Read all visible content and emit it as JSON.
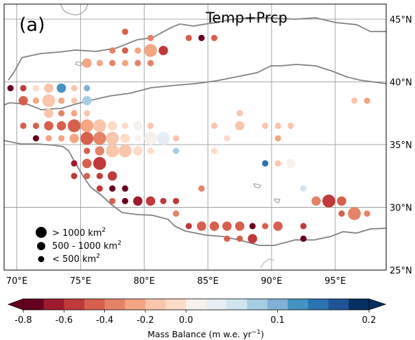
{
  "panel_label": "(a)",
  "experiment": "Temp+Prcp",
  "map": {
    "lon_range": [
      69,
      99
    ],
    "lat_range": [
      25,
      46.2
    ],
    "lon_ticks": [
      {
        "value": 70,
        "label": "70°E"
      },
      {
        "value": 75,
        "label": "75°E"
      },
      {
        "value": 80,
        "label": "80°E"
      },
      {
        "value": 85,
        "label": "85°E"
      },
      {
        "value": 90,
        "label": "90°E"
      },
      {
        "value": 95,
        "label": "95°E"
      }
    ],
    "lat_ticks": [
      {
        "value": 25,
        "label": "25°N"
      },
      {
        "value": 30,
        "label": "30°N"
      },
      {
        "value": 35,
        "label": "35°N"
      },
      {
        "value": 40,
        "label": "40°N"
      },
      {
        "value": 45,
        "label": "45°N"
      }
    ],
    "gridlines": true
  },
  "size_legend": [
    {
      "size": "large",
      "label": "> 1000 km",
      "exp": "2"
    },
    {
      "size": "medium",
      "label": "500 - 1000 km",
      "exp": "2"
    },
    {
      "size": "small",
      "label": "< 500 km",
      "exp": "2"
    }
  ],
  "colorbar": {
    "title_main": "Mass Balance (m w.e. yr",
    "title_exp": "−1",
    "title_end": ")",
    "extend": "both",
    "colors": [
      "#67001f",
      "#9e1a2e",
      "#c0393b",
      "#d6604d",
      "#e58368",
      "#f4a582",
      "#f9c6ac",
      "#fddbc7",
      "#f7f1ee",
      "#e4eef4",
      "#d1e5f0",
      "#a6cee3",
      "#7fb2d5",
      "#4393c3",
      "#2d73b0",
      "#1e5496",
      "#053061"
    ],
    "ticks": [
      {
        "value": -0.8,
        "label": "-0.8"
      },
      {
        "value": -0.6,
        "label": "-0.6"
      },
      {
        "value": -0.4,
        "label": "-0.4"
      },
      {
        "value": -0.2,
        "label": "-0.2"
      },
      {
        "value": 0.0,
        "label": "0.0"
      },
      {
        "value": 0.1,
        "label": "0.1"
      },
      {
        "value": 0.2,
        "label": "0.2"
      }
    ]
  },
  "chart_data": {
    "type": "scatter",
    "title": "Temp+Prcp",
    "xlabel": "",
    "ylabel": "",
    "size_classes": {
      "s": "< 500 km2",
      "m": "500 - 1000 km2",
      "l": "> 1000 km2"
    },
    "points": [
      {
        "lon": 78.5,
        "lat": 44.0,
        "mb": -0.45,
        "size": "s"
      },
      {
        "lon": 80.5,
        "lat": 43.5,
        "mb": -0.35,
        "size": "s"
      },
      {
        "lon": 83.5,
        "lat": 43.5,
        "mb": -0.45,
        "size": "s"
      },
      {
        "lon": 84.5,
        "lat": 43.5,
        "mb": -0.75,
        "size": "s"
      },
      {
        "lon": 85.5,
        "lat": 43.5,
        "mb": -0.5,
        "size": "s"
      },
      {
        "lon": 77.5,
        "lat": 42.5,
        "mb": -0.4,
        "size": "s"
      },
      {
        "lon": 78.5,
        "lat": 42.5,
        "mb": -0.45,
        "size": "s"
      },
      {
        "lon": 79.5,
        "lat": 42.5,
        "mb": -0.3,
        "size": "s"
      },
      {
        "lon": 80.5,
        "lat": 42.5,
        "mb": -0.25,
        "size": "l"
      },
      {
        "lon": 81.5,
        "lat": 42.5,
        "mb": -0.6,
        "size": "m"
      },
      {
        "lon": 75.5,
        "lat": 41.5,
        "mb": -0.3,
        "size": "m"
      },
      {
        "lon": 76.5,
        "lat": 41.5,
        "mb": -0.3,
        "size": "s"
      },
      {
        "lon": 77.5,
        "lat": 41.5,
        "mb": -0.4,
        "size": "s"
      },
      {
        "lon": 78.5,
        "lat": 41.5,
        "mb": -0.25,
        "size": "s"
      },
      {
        "lon": 79.5,
        "lat": 41.5,
        "mb": -0.35,
        "size": "s"
      },
      {
        "lon": 80.5,
        "lat": 41.5,
        "mb": -0.35,
        "size": "s"
      },
      {
        "lon": 69.5,
        "lat": 39.5,
        "mb": -0.85,
        "size": "s"
      },
      {
        "lon": 70.5,
        "lat": 39.5,
        "mb": -0.55,
        "size": "s"
      },
      {
        "lon": 71.5,
        "lat": 39.5,
        "mb": -0.1,
        "size": "s"
      },
      {
        "lon": 72.5,
        "lat": 39.5,
        "mb": -0.2,
        "size": "m"
      },
      {
        "lon": 73.5,
        "lat": 39.5,
        "mb": 0.12,
        "size": "m"
      },
      {
        "lon": 74.5,
        "lat": 39.5,
        "mb": -0.15,
        "size": "s"
      },
      {
        "lon": 75.5,
        "lat": 39.5,
        "mb": 0.1,
        "size": "s"
      },
      {
        "lon": 70.5,
        "lat": 38.5,
        "mb": -0.45,
        "size": "m"
      },
      {
        "lon": 71.5,
        "lat": 38.5,
        "mb": -0.25,
        "size": "s"
      },
      {
        "lon": 72.5,
        "lat": 38.5,
        "mb": -0.2,
        "size": "l"
      },
      {
        "lon": 73.5,
        "lat": 38.5,
        "mb": -0.3,
        "size": "s"
      },
      {
        "lon": 74.5,
        "lat": 38.5,
        "mb": -0.2,
        "size": "s"
      },
      {
        "lon": 75.5,
        "lat": 38.5,
        "mb": 0.08,
        "size": "m"
      },
      {
        "lon": 72.5,
        "lat": 37.5,
        "mb": -0.2,
        "size": "m"
      },
      {
        "lon": 73.5,
        "lat": 37.5,
        "mb": -0.4,
        "size": "s"
      },
      {
        "lon": 74.5,
        "lat": 37.5,
        "mb": -0.3,
        "size": "s"
      },
      {
        "lon": 75.5,
        "lat": 37.5,
        "mb": -0.2,
        "size": "s"
      },
      {
        "lon": 87.5,
        "lat": 37.5,
        "mb": -0.2,
        "size": "s"
      },
      {
        "lon": 96.5,
        "lat": 38.5,
        "mb": -0.2,
        "size": "s"
      },
      {
        "lon": 97.5,
        "lat": 38.5,
        "mb": -0.25,
        "size": "s"
      },
      {
        "lon": 70.5,
        "lat": 36.5,
        "mb": -0.45,
        "size": "s"
      },
      {
        "lon": 71.5,
        "lat": 36.5,
        "mb": -0.5,
        "size": "s"
      },
      {
        "lon": 72.5,
        "lat": 36.5,
        "mb": -0.45,
        "size": "m"
      },
      {
        "lon": 73.5,
        "lat": 36.5,
        "mb": -0.45,
        "size": "m"
      },
      {
        "lon": 74.5,
        "lat": 36.5,
        "mb": -0.45,
        "size": "l"
      },
      {
        "lon": 75.5,
        "lat": 36.5,
        "mb": -0.3,
        "size": "l"
      },
      {
        "lon": 76.5,
        "lat": 36.5,
        "mb": -0.15,
        "size": "l"
      },
      {
        "lon": 77.5,
        "lat": 36.5,
        "mb": -0.1,
        "size": "m"
      },
      {
        "lon": 78.5,
        "lat": 36.5,
        "mb": -0.05,
        "size": "s"
      },
      {
        "lon": 79.5,
        "lat": 36.5,
        "mb": 0.02,
        "size": "m"
      },
      {
        "lon": 80.5,
        "lat": 36.5,
        "mb": -0.15,
        "size": "s"
      },
      {
        "lon": 85.5,
        "lat": 36.5,
        "mb": -0.2,
        "size": "s"
      },
      {
        "lon": 87.5,
        "lat": 36.5,
        "mb": -0.2,
        "size": "m"
      },
      {
        "lon": 89.5,
        "lat": 36.5,
        "mb": -0.15,
        "size": "s"
      },
      {
        "lon": 90.5,
        "lat": 36.5,
        "mb": -0.2,
        "size": "s"
      },
      {
        "lon": 91.5,
        "lat": 36.5,
        "mb": -0.2,
        "size": "s"
      },
      {
        "lon": 71.5,
        "lat": 35.5,
        "mb": -0.85,
        "size": "s"
      },
      {
        "lon": 72.5,
        "lat": 35.5,
        "mb": -0.3,
        "size": "s"
      },
      {
        "lon": 73.5,
        "lat": 35.5,
        "mb": -0.3,
        "size": "s"
      },
      {
        "lon": 74.5,
        "lat": 35.5,
        "mb": -0.3,
        "size": "m"
      },
      {
        "lon": 75.5,
        "lat": 35.5,
        "mb": -0.45,
        "size": "l"
      },
      {
        "lon": 76.5,
        "lat": 35.5,
        "mb": -0.35,
        "size": "l"
      },
      {
        "lon": 77.5,
        "lat": 35.5,
        "mb": -0.15,
        "size": "l"
      },
      {
        "lon": 78.5,
        "lat": 35.5,
        "mb": -0.05,
        "size": "m"
      },
      {
        "lon": 79.5,
        "lat": 35.5,
        "mb": 0.02,
        "size": "s"
      },
      {
        "lon": 80.5,
        "lat": 35.5,
        "mb": 0.02,
        "size": "l"
      },
      {
        "lon": 81.5,
        "lat": 35.5,
        "mb": 0.03,
        "size": "l"
      },
      {
        "lon": 82.5,
        "lat": 35.5,
        "mb": -0.2,
        "size": "s"
      },
      {
        "lon": 86.5,
        "lat": 35.5,
        "mb": -0.1,
        "size": "s"
      },
      {
        "lon": 90.5,
        "lat": 35.5,
        "mb": -0.25,
        "size": "s"
      },
      {
        "lon": 75.5,
        "lat": 34.5,
        "mb": -0.5,
        "size": "s"
      },
      {
        "lon": 76.5,
        "lat": 34.5,
        "mb": -0.35,
        "size": "m"
      },
      {
        "lon": 77.5,
        "lat": 34.5,
        "mb": -0.2,
        "size": "l"
      },
      {
        "lon": 78.5,
        "lat": 34.5,
        "mb": -0.15,
        "size": "l"
      },
      {
        "lon": 79.5,
        "lat": 34.5,
        "mb": -0.1,
        "size": "m"
      },
      {
        "lon": 80.5,
        "lat": 34.5,
        "mb": -0.05,
        "size": "s"
      },
      {
        "lon": 82.5,
        "lat": 34.5,
        "mb": 0.07,
        "size": "s"
      },
      {
        "lon": 85.5,
        "lat": 34.5,
        "mb": -0.05,
        "size": "s"
      },
      {
        "lon": 74.5,
        "lat": 33.5,
        "mb": -0.65,
        "size": "s"
      },
      {
        "lon": 75.5,
        "lat": 33.5,
        "mb": -0.5,
        "size": "m"
      },
      {
        "lon": 76.5,
        "lat": 33.5,
        "mb": -0.55,
        "size": "l"
      },
      {
        "lon": 89.5,
        "lat": 33.5,
        "mb": 0.14,
        "size": "s"
      },
      {
        "lon": 90.5,
        "lat": 33.5,
        "mb": -0.15,
        "size": "s"
      },
      {
        "lon": 91.5,
        "lat": 33.5,
        "mb": 0.02,
        "size": "m"
      },
      {
        "lon": 74.5,
        "lat": 32.5,
        "mb": -0.6,
        "size": "s"
      },
      {
        "lon": 75.5,
        "lat": 32.5,
        "mb": -0.5,
        "size": "s"
      },
      {
        "lon": 76.5,
        "lat": 32.5,
        "mb": -0.55,
        "size": "s"
      },
      {
        "lon": 77.5,
        "lat": 32.5,
        "mb": -0.55,
        "size": "m"
      },
      {
        "lon": 76.5,
        "lat": 31.5,
        "mb": -0.6,
        "size": "s"
      },
      {
        "lon": 77.5,
        "lat": 31.5,
        "mb": -0.85,
        "size": "s"
      },
      {
        "lon": 78.5,
        "lat": 31.5,
        "mb": -0.85,
        "size": "s"
      },
      {
        "lon": 77.5,
        "lat": 30.5,
        "mb": -0.5,
        "size": "s"
      },
      {
        "lon": 78.5,
        "lat": 30.5,
        "mb": -0.85,
        "size": "s"
      },
      {
        "lon": 79.5,
        "lat": 30.5,
        "mb": -0.65,
        "size": "m"
      },
      {
        "lon": 80.5,
        "lat": 30.5,
        "mb": -0.55,
        "size": "m"
      },
      {
        "lon": 81.5,
        "lat": 30.5,
        "mb": -0.6,
        "size": "s"
      },
      {
        "lon": 82.5,
        "lat": 30.5,
        "mb": -0.6,
        "size": "s"
      },
      {
        "lon": 84.5,
        "lat": 31.5,
        "mb": -0.35,
        "size": "s"
      },
      {
        "lon": 92.5,
        "lat": 31.5,
        "mb": 0.06,
        "size": "s"
      },
      {
        "lon": 93.5,
        "lat": 30.5,
        "mb": -0.35,
        "size": "m"
      },
      {
        "lon": 94.5,
        "lat": 30.5,
        "mb": -0.55,
        "size": "l"
      },
      {
        "lon": 95.5,
        "lat": 30.5,
        "mb": -0.45,
        "size": "m"
      },
      {
        "lon": 95.5,
        "lat": 29.5,
        "mb": -0.45,
        "size": "s"
      },
      {
        "lon": 96.5,
        "lat": 29.5,
        "mb": -0.35,
        "size": "l"
      },
      {
        "lon": 97.5,
        "lat": 29.5,
        "mb": -0.4,
        "size": "s"
      },
      {
        "lon": 82.5,
        "lat": 29.5,
        "mb": -0.35,
        "size": "s"
      },
      {
        "lon": 83.5,
        "lat": 28.5,
        "mb": -0.55,
        "size": "s"
      },
      {
        "lon": 84.5,
        "lat": 28.5,
        "mb": -0.45,
        "size": "m"
      },
      {
        "lon": 85.5,
        "lat": 28.5,
        "mb": -0.5,
        "size": "m"
      },
      {
        "lon": 86.5,
        "lat": 28.5,
        "mb": -0.45,
        "size": "m"
      },
      {
        "lon": 87.5,
        "lat": 28.5,
        "mb": -0.5,
        "size": "m"
      },
      {
        "lon": 88.5,
        "lat": 28.5,
        "mb": -0.8,
        "size": "s"
      },
      {
        "lon": 89.5,
        "lat": 28.5,
        "mb": -0.45,
        "size": "s"
      },
      {
        "lon": 90.5,
        "lat": 28.5,
        "mb": -0.5,
        "size": "m"
      },
      {
        "lon": 92.5,
        "lat": 28.5,
        "mb": -0.6,
        "size": "s"
      },
      {
        "lon": 86.5,
        "lat": 27.5,
        "mb": -0.45,
        "size": "s"
      },
      {
        "lon": 87.5,
        "lat": 27.5,
        "mb": -0.5,
        "size": "s"
      },
      {
        "lon": 88.5,
        "lat": 27.5,
        "mb": -0.55,
        "size": "m"
      },
      {
        "lon": 92.5,
        "lat": 27.5,
        "mb": -0.85,
        "size": "s"
      }
    ]
  }
}
